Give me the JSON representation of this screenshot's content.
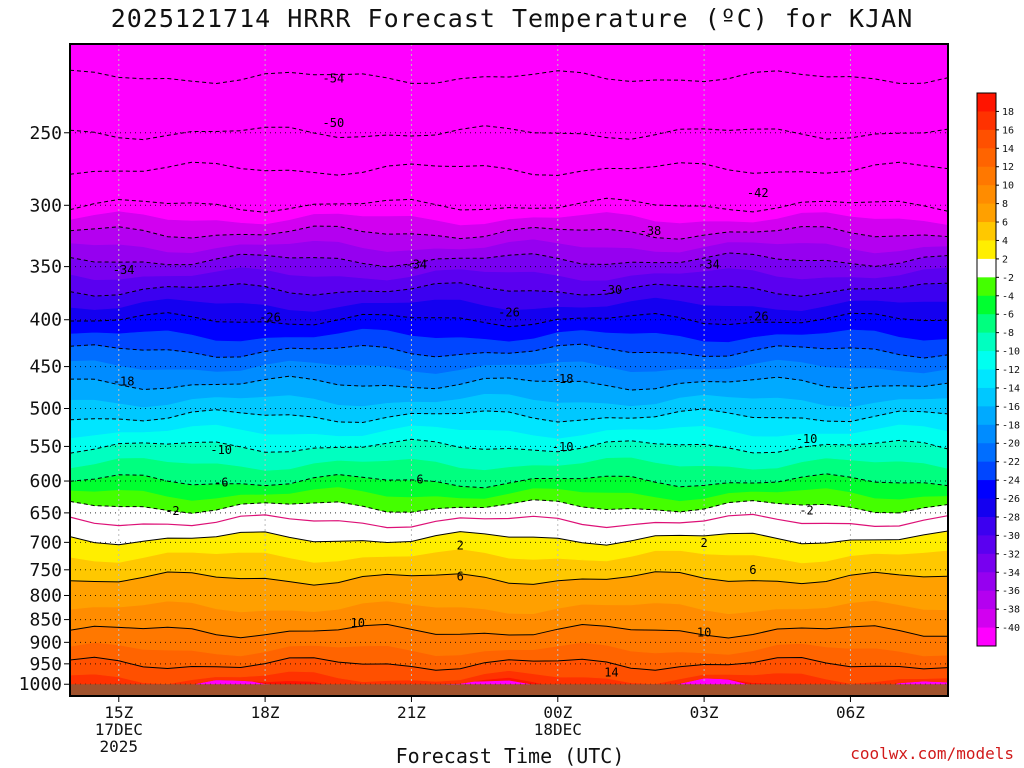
{
  "title": "2025121714 HRRR Forecast Temperature (ºC) for KJAN",
  "credit": "coolwx.com/models",
  "chart_data": {
    "type": "heatmap",
    "title": "2025121714 HRRR Forecast Temperature (ºC) for KJAN",
    "xlabel": "Forecast Time (UTC)",
    "ylabel": "",
    "x_unit": "hours (UTC)",
    "xlim": [
      14,
      32
    ],
    "ylim": [
      1030,
      200
    ],
    "yscale": "log",
    "x_ticks": [
      {
        "x": 15,
        "lines": [
          "15Z",
          "17DEC",
          "2025"
        ]
      },
      {
        "x": 18,
        "lines": [
          "18Z"
        ]
      },
      {
        "x": 21,
        "lines": [
          "21Z"
        ]
      },
      {
        "x": 24,
        "lines": [
          "00Z",
          "18DEC"
        ]
      },
      {
        "x": 27,
        "lines": [
          "03Z"
        ]
      },
      {
        "x": 30,
        "lines": [
          "06Z"
        ]
      }
    ],
    "y_ticks": [
      250,
      300,
      350,
      400,
      450,
      500,
      550,
      600,
      650,
      700,
      750,
      800,
      850,
      900,
      950,
      1000
    ],
    "dotted_levels": [
      250,
      300,
      350,
      400,
      450,
      500,
      550,
      600,
      650,
      700,
      750,
      800,
      850,
      900,
      950,
      1000
    ],
    "ground_level": 1000,
    "colorbar": {
      "labels": [
        "18",
        "16",
        "14",
        "12",
        "10",
        "8",
        "6",
        "4",
        "2",
        "-2",
        "-4",
        "-6",
        "-8",
        "-10",
        "-12",
        "-14",
        "-16",
        "-18",
        "-20",
        "-22",
        "-24",
        "-26",
        "-28",
        "-30",
        "-32",
        "-34",
        "-36",
        "-38",
        "-40"
      ],
      "bins": [
        {
          "min": 18,
          "max": 20,
          "color": "#ff1400"
        },
        {
          "min": 16,
          "max": 18,
          "color": "#ff3200"
        },
        {
          "min": 14,
          "max": 16,
          "color": "#ff5000"
        },
        {
          "min": 12,
          "max": 14,
          "color": "#ff6400"
        },
        {
          "min": 10,
          "max": 12,
          "color": "#ff7800"
        },
        {
          "min": 8,
          "max": 10,
          "color": "#ff8c00"
        },
        {
          "min": 6,
          "max": 8,
          "color": "#ffa000"
        },
        {
          "min": 4,
          "max": 6,
          "color": "#ffc800"
        },
        {
          "min": 2,
          "max": 4,
          "color": "#ffee00"
        },
        {
          "min": -2,
          "max": 2,
          "color": "#ffffff"
        },
        {
          "min": -4,
          "max": -2,
          "color": "#44ff00"
        },
        {
          "min": -6,
          "max": -4,
          "color": "#00ff30"
        },
        {
          "min": -8,
          "max": -6,
          "color": "#00ff7f"
        },
        {
          "min": -10,
          "max": -8,
          "color": "#00ffc0"
        },
        {
          "min": -12,
          "max": -10,
          "color": "#00fff0"
        },
        {
          "min": -14,
          "max": -12,
          "color": "#00e6ff"
        },
        {
          "min": -16,
          "max": -14,
          "color": "#00c8ff"
        },
        {
          "min": -18,
          "max": -16,
          "color": "#00aaff"
        },
        {
          "min": -20,
          "max": -18,
          "color": "#008cff"
        },
        {
          "min": -22,
          "max": -20,
          "color": "#006eff"
        },
        {
          "min": -24,
          "max": -22,
          "color": "#0046ff"
        },
        {
          "min": -26,
          "max": -24,
          "color": "#0000ff"
        },
        {
          "min": -28,
          "max": -26,
          "color": "#1400f0"
        },
        {
          "min": -30,
          "max": -28,
          "color": "#3c00f0"
        },
        {
          "min": -32,
          "max": -30,
          "color": "#5a00f0"
        },
        {
          "min": -34,
          "max": -32,
          "color": "#7800f0"
        },
        {
          "min": -36,
          "max": -34,
          "color": "#9600f0"
        },
        {
          "min": -38,
          "max": -36,
          "color": "#b400f0"
        },
        {
          "min": -40,
          "max": -38,
          "color": "#d200f0"
        },
        {
          "min": -60,
          "max": -40,
          "color": "#ff00ff"
        }
      ],
      "ground_color": "#a0522d"
    },
    "profile_pressure": [
      1000,
      950,
      900,
      850,
      800,
      750,
      700,
      650,
      600,
      550,
      500,
      450,
      400,
      350,
      300,
      250,
      210
    ],
    "profile_temperature": [
      17,
      14,
      11,
      9,
      7,
      5.5,
      2.5,
      -1,
      -6,
      -10,
      -15,
      -20,
      -26,
      -33,
      -42,
      -50,
      -55
    ],
    "contour_labels": [
      {
        "text": "-54",
        "x": 19.4,
        "p": 218
      },
      {
        "text": "-50",
        "x": 19.4,
        "p": 244
      },
      {
        "text": "-42",
        "x": 28.1,
        "p": 291
      },
      {
        "text": "-38",
        "x": 25.9,
        "p": 320
      },
      {
        "text": "-34",
        "x": 15.1,
        "p": 353
      },
      {
        "text": "-34",
        "x": 21.1,
        "p": 348
      },
      {
        "text": "-34",
        "x": 27.1,
        "p": 348
      },
      {
        "text": "-30",
        "x": 25.1,
        "p": 371
      },
      {
        "text": "-26",
        "x": 18.1,
        "p": 398
      },
      {
        "text": "-26",
        "x": 23.0,
        "p": 393
      },
      {
        "text": "-26",
        "x": 28.1,
        "p": 397
      },
      {
        "text": "-18",
        "x": 15.1,
        "p": 467
      },
      {
        "text": "-18",
        "x": 24.1,
        "p": 464
      },
      {
        "text": "-10",
        "x": 17.1,
        "p": 555
      },
      {
        "text": "-10",
        "x": 24.1,
        "p": 551
      },
      {
        "text": "-10",
        "x": 29.1,
        "p": 540
      },
      {
        "text": "-6",
        "x": 17.1,
        "p": 602
      },
      {
        "text": "-6",
        "x": 21.1,
        "p": 598
      },
      {
        "text": "-2",
        "x": 16.1,
        "p": 647
      },
      {
        "text": "-2",
        "x": 29.1,
        "p": 646
      },
      {
        "text": "2",
        "x": 22.0,
        "p": 706
      },
      {
        "text": "2",
        "x": 27.0,
        "p": 701
      },
      {
        "text": "6",
        "x": 22.0,
        "p": 763
      },
      {
        "text": "6",
        "x": 28.0,
        "p": 750
      },
      {
        "text": "10",
        "x": 19.9,
        "p": 857
      },
      {
        "text": "10",
        "x": 27.0,
        "p": 878
      },
      {
        "text": "14",
        "x": 25.1,
        "p": 971
      }
    ]
  }
}
